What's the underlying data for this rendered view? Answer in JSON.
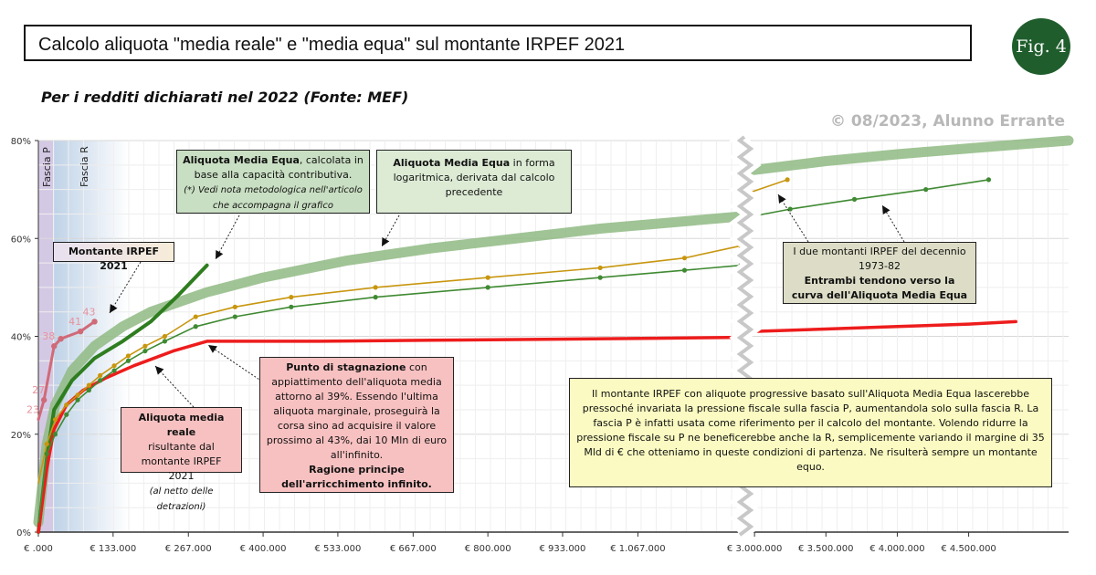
{
  "header": {
    "title": "Calcolo aliquota \"media reale\" e \"media equa\" sul montante IRPEF 2021",
    "badge": "Fig. 4",
    "subtitle": "Per i redditi dichiarati nel 2022 (Fonte: MEF)",
    "credit": "© 08/2023, Alunno Errante"
  },
  "colors": {
    "equa_band": "#8fba82",
    "equa_computed": "#2e7d1f",
    "reale": "#ee1c1c",
    "montante_2021": "#d06a78",
    "montante_1973": "#c8960f",
    "montante_1982": "#3f8a32",
    "fascia_p": "#cdbfe0",
    "fascia_r": "#bcd0e6"
  },
  "chart_data": {
    "type": "line",
    "title": "Calcolo aliquota \"media reale\" e \"media equa\" sul montante IRPEF 2021",
    "subtitle": "Per i redditi dichiarati nel 2022 (Fonte: MEF)",
    "xlabel": "",
    "ylabel": "",
    "y_ticks": [
      "0%",
      "20%",
      "40%",
      "60%",
      "80%"
    ],
    "ylim": [
      0,
      80
    ],
    "x_ticks_left": [
      "€ .000",
      "€ 133.000",
      "€ 267.000",
      "€ 400.000",
      "€ 533.000",
      "€ 667.000",
      "€ 800.000",
      "€ 933.000",
      "€ 1.067.000"
    ],
    "x_ticks_right": [
      "€ 3.000.000",
      "€ 3.500.000",
      "€ 4.000.000",
      "€ 4.500.000"
    ],
    "xlim_left": [
      0,
      1250000
    ],
    "xlim_right": [
      2980000,
      5200000
    ],
    "axis_break": "between € 1.250.000 and € 3.000.000",
    "grid": true,
    "bands": [
      {
        "label": "Fascia P",
        "x_end": 28000
      },
      {
        "label": "Fascia R",
        "x_end": 80000
      }
    ],
    "series": [
      {
        "name": "Aliquota Media Equa (forma logaritmica)",
        "segment": "left",
        "x": [
          0,
          15000,
          30000,
          60000,
          100000,
          150000,
          200000,
          300000,
          400000,
          550000,
          700000,
          850000,
          1000000,
          1150000,
          1250000
        ],
        "y": [
          2,
          18,
          26,
          33,
          38,
          42,
          45,
          49,
          52,
          55.5,
          58,
          60,
          62,
          63.5,
          64.5
        ]
      },
      {
        "name": "Aliquota Media Equa (forma logaritmica)",
        "segment": "right",
        "x": [
          3000000,
          3500000,
          4000000,
          4500000,
          5200000
        ],
        "y": [
          74,
          75.8,
          77.2,
          78.4,
          80
        ]
      },
      {
        "name": "Aliquota Media Equa (calcolata)",
        "x": [
          0,
          15000,
          28000,
          60000,
          100000,
          150000,
          200000,
          250000,
          300000
        ],
        "y": [
          0,
          15,
          25,
          31,
          35.5,
          39,
          43,
          48.5,
          54.5
        ]
      },
      {
        "name": "Aliquota media reale",
        "segment": "left",
        "x": [
          0,
          15000,
          28000,
          50000,
          80000,
          120000,
          170000,
          240000,
          300000,
          500000,
          700000,
          900000,
          1100000,
          1250000
        ],
        "y": [
          0,
          13,
          21,
          26,
          29,
          31.5,
          34,
          37,
          39,
          39,
          39.2,
          39.4,
          39.6,
          39.8
        ]
      },
      {
        "name": "Aliquota media reale",
        "segment": "right",
        "x": [
          3000000,
          3500000,
          4000000,
          4500000,
          4830000
        ],
        "y": [
          41,
          41.5,
          42,
          42.5,
          43
        ]
      },
      {
        "name": "Montante IRPEF 2021",
        "x": [
          0,
          10000,
          28000,
          40000,
          75000,
          100000
        ],
        "y": [
          23,
          27,
          38,
          39.5,
          41,
          43
        ],
        "point_labels": [
          "23",
          "27",
          "38",
          "",
          "41",
          "43"
        ]
      },
      {
        "name": "Montante IRPEF 1973",
        "segment": "left",
        "x": [
          0,
          15000,
          30000,
          50000,
          70000,
          90000,
          110000,
          135000,
          160000,
          190000,
          225000,
          280000,
          350000,
          450000,
          600000,
          800000,
          1000000,
          1150000,
          1250000
        ],
        "y": [
          10,
          18,
          23,
          26,
          28,
          30,
          32,
          34,
          36,
          38,
          40,
          44,
          46,
          48,
          50,
          52,
          54,
          56,
          58.5
        ]
      },
      {
        "name": "Montante IRPEF 1973",
        "segment": "right",
        "x": [
          2980000,
          3230000
        ],
        "y": [
          69.5,
          72
        ]
      },
      {
        "name": "Montante IRPEF 1982",
        "segment": "left",
        "x": [
          0,
          15000,
          30000,
          50000,
          70000,
          90000,
          110000,
          135000,
          160000,
          190000,
          225000,
          280000,
          350000,
          450000,
          600000,
          800000,
          1000000,
          1150000,
          1250000
        ],
        "y": [
          2,
          16,
          20,
          24,
          27,
          29,
          31,
          33,
          35,
          37,
          39,
          42,
          44,
          46,
          48,
          50,
          52,
          53.5,
          54.5
        ]
      },
      {
        "name": "Montante IRPEF 1982",
        "segment": "right",
        "x": [
          2980000,
          3250000,
          3700000,
          4200000,
          4640000
        ],
        "y": [
          64.5,
          66,
          68,
          70,
          72
        ]
      }
    ]
  },
  "annotations": {
    "equa_computed": {
      "title": "Aliquota Media Equa",
      "text": ", calcolata in base alla capacità contributiva.",
      "note": "(*) Vedi nota metodologica nell'articolo che accompagna il grafico"
    },
    "equa_log": {
      "title": "Aliquota Media Equa",
      "text": " in forma logaritmica, derivata dal calcolo precedente"
    },
    "montante_2021": {
      "label": "Montante IRPEF 2021"
    },
    "montanti_decennio": {
      "line1": "I due montanti IRPEF del decennio 1973-82",
      "line2": "Entrambi tendono verso la curva dell'Aliquota Media Equa"
    },
    "stagnazione": {
      "title": "Punto di stagnazione",
      "text": " con appiattimento dell'aliquota media attorno al 39%. Essendo l'ultima aliquota marginale, proseguirà la corsa sino ad acquisire il valore prossimo al 43%, dai 10 Mln di euro all'infinito.",
      "footer": "Ragione principe dell'arricchimento infinito."
    },
    "reale": {
      "title": "Aliquota media reale",
      "text": "risultante dal montante IRPEF 2021",
      "note": "(al netto delle detrazioni)"
    },
    "fascia_note": {
      "text": "Il montante IRPEF con aliquote progressive basato sull'Aliquota Media Equa lascerebbe pressoché invariata la pressione fiscale sulla fascia P, aumentandola solo sulla fascia R. La fascia P è infatti usata come riferimento per il calcolo del montante. Volendo ridurre la pressione fiscale su P ne beneficerebbe anche la R, semplicemente variando il margine di 35 Mld di € che otteniamo in queste condizioni di partenza. Ne risulterà sempre un montante equo."
    }
  }
}
